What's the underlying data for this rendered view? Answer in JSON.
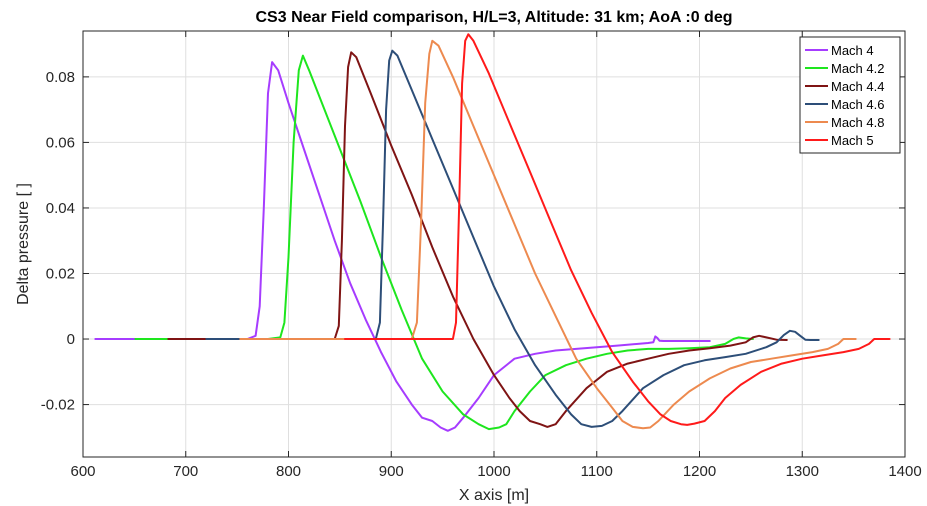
{
  "chart_data": {
    "type": "line",
    "title": "CS3 Near Field comparison, H/L=3, Altitude: 31 km; AoA :0 deg",
    "xlabel": "X axis [m]",
    "ylabel": "Delta pressure [ ]",
    "xlim": [
      600,
      1400
    ],
    "ylim": [
      -0.036,
      0.094
    ],
    "xticks": [
      600,
      700,
      800,
      900,
      1000,
      1100,
      1200,
      1300,
      1400
    ],
    "xtick_labels": [
      "600",
      "700",
      "800",
      "900",
      "1000",
      "1100",
      "1200",
      "1300",
      "1400"
    ],
    "yticks": [
      -0.02,
      0,
      0.02,
      0.04,
      0.06,
      0.08
    ],
    "ytick_labels": [
      "-0.02",
      "0",
      "0.02",
      "0.04",
      "0.06",
      "0.08"
    ],
    "grid": true,
    "legend_position": "top-right",
    "series": [
      {
        "name": "Mach 4",
        "color": "#a63cff",
        "x": [
          612,
          700,
          760,
          768,
          772,
          776,
          780,
          784,
          790,
          800,
          815,
          830,
          845,
          860,
          875,
          890,
          905,
          920,
          930,
          940,
          948,
          955,
          962,
          970,
          985,
          1000,
          1020,
          1040,
          1060,
          1080,
          1100,
          1120,
          1140,
          1150,
          1155,
          1157,
          1159,
          1161,
          1165,
          1175,
          1190,
          1210
        ],
        "y": [
          0,
          0,
          0,
          0.001,
          0.01,
          0.04,
          0.075,
          0.0845,
          0.082,
          0.072,
          0.058,
          0.044,
          0.03,
          0.017,
          0.006,
          -0.004,
          -0.013,
          -0.02,
          -0.024,
          -0.025,
          -0.027,
          -0.028,
          -0.027,
          -0.024,
          -0.018,
          -0.011,
          -0.006,
          -0.0045,
          -0.0035,
          -0.003,
          -0.0025,
          -0.002,
          -0.0015,
          -0.0012,
          -0.001,
          0.0008,
          0.0003,
          -0.0005,
          -0.0006,
          -0.0006,
          -0.0006,
          -0.0006
        ]
      },
      {
        "name": "Mach 4.2",
        "color": "#1ee61e",
        "x": [
          651,
          700,
          780,
          792,
          796,
          800,
          805,
          810,
          814,
          820,
          835,
          850,
          870,
          890,
          910,
          930,
          950,
          970,
          985,
          995,
          1005,
          1012,
          1020,
          1035,
          1050,
          1070,
          1090,
          1110,
          1130,
          1150,
          1170,
          1190,
          1210,
          1225,
          1233,
          1238,
          1245,
          1252
        ],
        "y": [
          0,
          0,
          0,
          0.0005,
          0.005,
          0.025,
          0.06,
          0.082,
          0.0865,
          0.082,
          0.07,
          0.058,
          0.042,
          0.025,
          0.009,
          -0.006,
          -0.016,
          -0.023,
          -0.026,
          -0.0275,
          -0.027,
          -0.026,
          -0.022,
          -0.016,
          -0.011,
          -0.008,
          -0.006,
          -0.0045,
          -0.0035,
          -0.003,
          -0.003,
          -0.0028,
          -0.0025,
          -0.0015,
          0,
          0.0005,
          0.0002,
          0
        ]
      },
      {
        "name": "Mach 4.4",
        "color": "#7f1414",
        "x": [
          683,
          760,
          845,
          849,
          852,
          855,
          858,
          861,
          866,
          880,
          900,
          920,
          940,
          960,
          980,
          1000,
          1015,
          1025,
          1035,
          1045,
          1052,
          1060,
          1070,
          1090,
          1110,
          1130,
          1150,
          1170,
          1190,
          1210,
          1230,
          1245,
          1252,
          1258,
          1265,
          1275,
          1285
        ],
        "y": [
          0,
          0,
          0,
          0.004,
          0.03,
          0.065,
          0.083,
          0.0875,
          0.086,
          0.075,
          0.059,
          0.044,
          0.028,
          0.013,
          0.0,
          -0.011,
          -0.018,
          -0.022,
          -0.025,
          -0.026,
          -0.0268,
          -0.026,
          -0.022,
          -0.015,
          -0.01,
          -0.0075,
          -0.006,
          -0.0045,
          -0.0035,
          -0.0028,
          -0.002,
          -0.001,
          0.0005,
          0.001,
          0.0005,
          -0.0002,
          -0.0003
        ]
      },
      {
        "name": "Mach 4.6",
        "color": "#2d4e78",
        "x": [
          720,
          800,
          885,
          889,
          892,
          895,
          898,
          901,
          906,
          920,
          940,
          960,
          980,
          1000,
          1020,
          1040,
          1060,
          1075,
          1085,
          1095,
          1105,
          1115,
          1125,
          1145,
          1165,
          1185,
          1205,
          1225,
          1245,
          1265,
          1275,
          1282,
          1288,
          1293,
          1298,
          1303,
          1308,
          1316
        ],
        "y": [
          0,
          0,
          0,
          0.005,
          0.035,
          0.07,
          0.085,
          0.088,
          0.0865,
          0.076,
          0.061,
          0.046,
          0.031,
          0.016,
          0.003,
          -0.008,
          -0.017,
          -0.023,
          -0.026,
          -0.0268,
          -0.0265,
          -0.025,
          -0.022,
          -0.015,
          -0.011,
          -0.008,
          -0.0065,
          -0.0055,
          -0.0045,
          -0.0025,
          -0.001,
          0.0012,
          0.0025,
          0.0022,
          0.001,
          -0.0002,
          -0.0003,
          -0.0003
        ]
      },
      {
        "name": "Mach 4.8",
        "color": "#ed8a4f",
        "x": [
          753,
          840,
          920,
          925,
          929,
          933,
          937,
          940,
          946,
          960,
          980,
          1000,
          1020,
          1040,
          1060,
          1080,
          1100,
          1115,
          1125,
          1135,
          1145,
          1152,
          1160,
          1175,
          1190,
          1210,
          1230,
          1250,
          1270,
          1290,
          1310,
          1325,
          1335,
          1340,
          1346,
          1352
        ],
        "y": [
          0,
          0,
          0,
          0.005,
          0.035,
          0.072,
          0.087,
          0.091,
          0.0895,
          0.08,
          0.065,
          0.05,
          0.035,
          0.02,
          0.007,
          -0.006,
          -0.015,
          -0.021,
          -0.025,
          -0.0268,
          -0.0272,
          -0.027,
          -0.025,
          -0.02,
          -0.016,
          -0.012,
          -0.009,
          -0.007,
          -0.006,
          -0.005,
          -0.004,
          -0.003,
          -0.0015,
          0,
          0,
          0
        ]
      },
      {
        "name": "Mach 5",
        "color": "#ff1a1a",
        "x": [
          855,
          900,
          960,
          963,
          966,
          969,
          972,
          975,
          980,
          995,
          1015,
          1035,
          1055,
          1075,
          1095,
          1115,
          1135,
          1150,
          1162,
          1172,
          1182,
          1188,
          1195,
          1205,
          1215,
          1225,
          1240,
          1260,
          1280,
          1300,
          1320,
          1340,
          1355,
          1365,
          1370,
          1375,
          1385
        ],
        "y": [
          0,
          0,
          0,
          0.005,
          0.04,
          0.078,
          0.091,
          0.093,
          0.091,
          0.081,
          0.066,
          0.051,
          0.036,
          0.021,
          0.008,
          -0.004,
          -0.013,
          -0.019,
          -0.023,
          -0.025,
          -0.026,
          -0.0262,
          -0.0258,
          -0.025,
          -0.022,
          -0.018,
          -0.014,
          -0.01,
          -0.0075,
          -0.006,
          -0.005,
          -0.004,
          -0.003,
          -0.0015,
          0,
          0,
          0
        ]
      }
    ]
  }
}
